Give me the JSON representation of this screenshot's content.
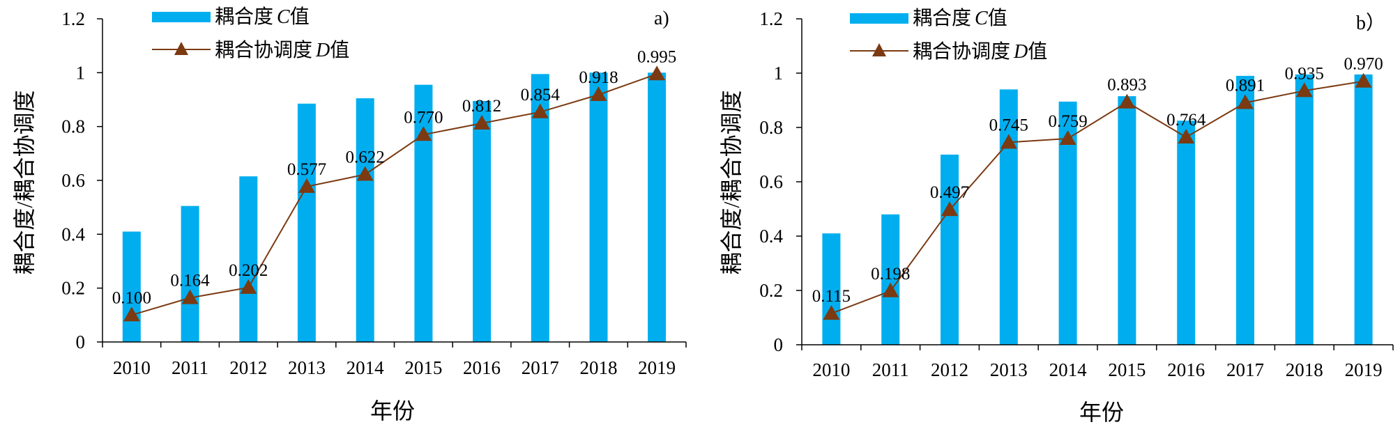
{
  "chart_data": [
    {
      "type": "bar+line",
      "panel_label": "a)",
      "categories": [
        "2010",
        "2011",
        "2012",
        "2013",
        "2014",
        "2015",
        "2016",
        "2017",
        "2018",
        "2019"
      ],
      "series": [
        {
          "name": "耦合度C值",
          "type": "bar",
          "values": [
            0.41,
            0.505,
            0.615,
            0.885,
            0.905,
            0.955,
            0.895,
            0.995,
            1.0,
            1.0
          ]
        },
        {
          "name": "耦合协调度D值",
          "type": "line",
          "marker": "triangle",
          "values": [
            0.1,
            0.164,
            0.202,
            0.577,
            0.622,
            0.77,
            0.812,
            0.854,
            0.918,
            0.995
          ],
          "labels": [
            "0.100",
            "0.164",
            "0.202",
            "0.577",
            "0.622",
            "0.770",
            "0.812",
            "0.854",
            "0.918",
            "0.995"
          ]
        }
      ],
      "legend": {
        "c_pre": "耦合度",
        "c_var": "C",
        "c_post": "值",
        "d_pre": "耦合协调度",
        "d_var": "D",
        "d_post": "值"
      },
      "xlabel": "年份",
      "ylabel": "耦合度/耦合协调度",
      "ylim": [
        0,
        1.2
      ],
      "yticks": [
        "0",
        "0.2",
        "0.4",
        "0.6",
        "0.8",
        "1",
        "1.2"
      ],
      "grid": false,
      "legend_position": "top-left"
    },
    {
      "type": "bar+line",
      "panel_label": "b）",
      "categories": [
        "2010",
        "2011",
        "2012",
        "2013",
        "2014",
        "2015",
        "2016",
        "2017",
        "2018",
        "2019"
      ],
      "series": [
        {
          "name": "耦合度C值",
          "type": "bar",
          "values": [
            0.41,
            0.48,
            0.7,
            0.94,
            0.895,
            0.915,
            0.825,
            0.99,
            0.995,
            0.995
          ]
        },
        {
          "name": "耦合协调度D值",
          "type": "line",
          "marker": "triangle",
          "values": [
            0.115,
            0.198,
            0.497,
            0.745,
            0.759,
            0.893,
            0.764,
            0.891,
            0.935,
            0.97
          ],
          "labels": [
            "0.115",
            "0.198",
            "0.497",
            "0.745",
            "0.759",
            "0.893",
            "0.764",
            "0.891",
            "0.935",
            "0.970"
          ]
        }
      ],
      "legend": {
        "c_pre": "耦合度",
        "c_var": "C",
        "c_post": "值",
        "d_pre": "耦合协调度",
        "d_var": "D",
        "d_post": "值"
      },
      "xlabel": "年份",
      "ylabel": "耦合度/耦合协调度",
      "ylim": [
        0,
        1.2
      ],
      "yticks": [
        "0",
        "0.2",
        "0.4",
        "0.6",
        "0.8",
        "1",
        "1.2"
      ],
      "grid": false,
      "legend_position": "top-left"
    }
  ],
  "colors": {
    "bar": "#00AEEF",
    "line": "#7B3A12",
    "axis": "#000000"
  }
}
